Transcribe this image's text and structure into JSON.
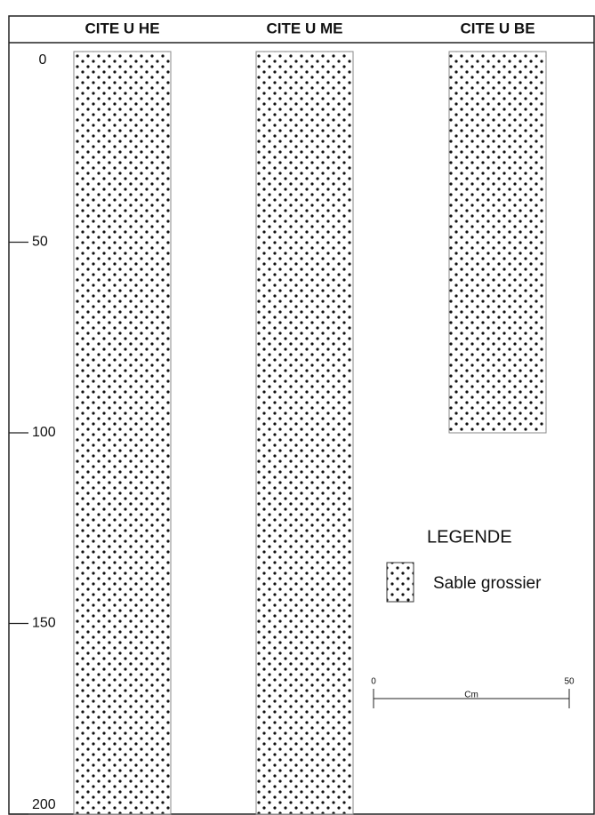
{
  "chart_data": {
    "type": "bar",
    "categories": [
      "CITE U HE",
      "CITE U ME",
      "CITE U BE"
    ],
    "values": [
      200,
      200,
      100
    ],
    "ylim": [
      0,
      200
    ],
    "yticks": [
      0,
      50,
      100,
      150,
      200
    ],
    "y_inverted": true,
    "legend": {
      "title": "LEGENDE",
      "entries": [
        "Sable grossier"
      ]
    },
    "scale_bar": {
      "label": "Cm",
      "ticks": [
        0,
        50
      ]
    }
  }
}
